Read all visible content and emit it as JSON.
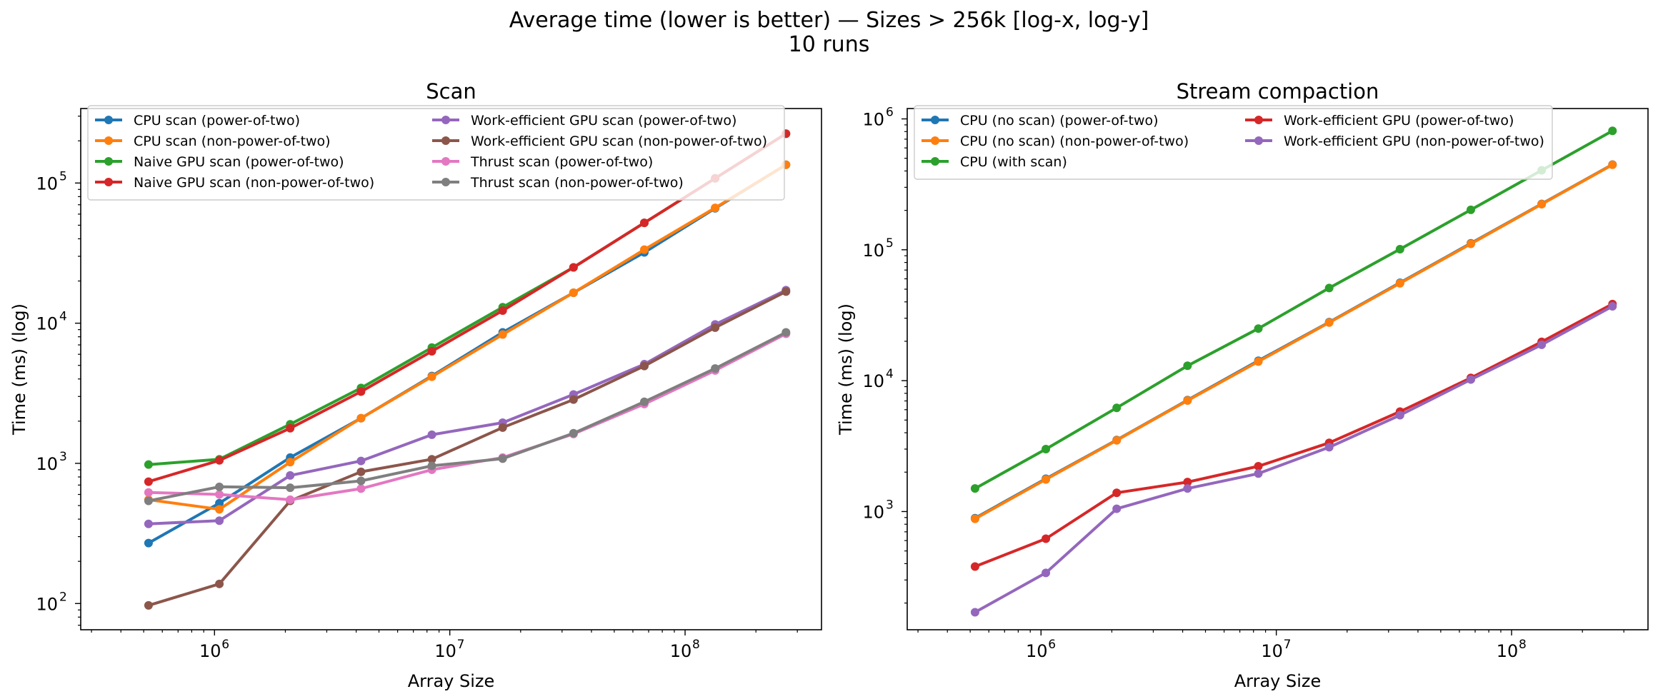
{
  "figure": {
    "title_line1": "Average time (lower is better) — Sizes > 256k [log-x, log-y]",
    "title_line2": "10 runs"
  },
  "chart_data": [
    {
      "type": "line",
      "title": "Scan",
      "xlabel": "Array Size",
      "ylabel": "Time (ms) (log)",
      "xscale": "log",
      "yscale": "log",
      "xlim": [
        270000,
        380000000
      ],
      "ylim": [
        65,
        340000
      ],
      "legend_position": "upper-left",
      "legend_columns": 2,
      "grid": false,
      "x": [
        524288,
        1048576,
        2097152,
        4194304,
        8388608,
        16777216,
        33554432,
        67108864,
        134217728,
        268435456
      ],
      "xticks": [
        1000000,
        10000000,
        100000000
      ],
      "xtick_labels": [
        {
          "base": "10",
          "exp": "6"
        },
        {
          "base": "10",
          "exp": "7"
        },
        {
          "base": "10",
          "exp": "8"
        }
      ],
      "yticks": [
        100,
        1000,
        10000,
        100000
      ],
      "ytick_labels": [
        {
          "base": "10",
          "exp": "2"
        },
        {
          "base": "10",
          "exp": "3"
        },
        {
          "base": "10",
          "exp": "4"
        },
        {
          "base": "10",
          "exp": "5"
        }
      ],
      "series": [
        {
          "name": "CPU scan (power-of-two)",
          "color": "#1f77b4",
          "values": [
            270,
            520,
            1100,
            2100,
            4200,
            8600,
            16500,
            32000,
            66000,
            135000
          ]
        },
        {
          "name": "CPU scan (non-power-of-two)",
          "color": "#ff7f0e",
          "values": [
            550,
            470,
            1020,
            2100,
            4150,
            8300,
            16500,
            33500,
            66500,
            135000
          ]
        },
        {
          "name": "Naive GPU scan (power-of-two)",
          "color": "#2ca02c",
          "values": [
            980,
            1070,
            1900,
            3450,
            6700,
            13000,
            25000,
            52000,
            108000,
            225000
          ]
        },
        {
          "name": "Naive GPU scan (non-power-of-two)",
          "color": "#d62728",
          "values": [
            740,
            1050,
            1780,
            3250,
            6300,
            12300,
            25000,
            52000,
            108000,
            225000
          ]
        },
        {
          "name": "Work-efficient GPU scan (power-of-two)",
          "color": "#9467bd",
          "values": [
            370,
            390,
            820,
            1040,
            1600,
            1950,
            3100,
            5100,
            9800,
            17200
          ]
        },
        {
          "name": "Work-efficient GPU scan (non-power-of-two)",
          "color": "#8c564b",
          "values": [
            97,
            138,
            540,
            870,
            1070,
            1800,
            2850,
            4950,
            9300,
            16800
          ]
        },
        {
          "name": "Thrust scan (power-of-two)",
          "color": "#e377c2",
          "values": [
            620,
            600,
            550,
            660,
            900,
            1100,
            1620,
            2650,
            4600,
            8400
          ]
        },
        {
          "name": "Thrust scan (non-power-of-two)",
          "color": "#7f7f7f",
          "values": [
            540,
            680,
            670,
            750,
            960,
            1080,
            1640,
            2750,
            4750,
            8600
          ]
        }
      ]
    },
    {
      "type": "line",
      "title": "Stream compaction",
      "xlabel": "Array Size",
      "ylabel": "Time (ms) (log)",
      "xscale": "log",
      "yscale": "log",
      "xlim": [
        270000,
        380000000
      ],
      "ylim": [
        125,
        1200000
      ],
      "legend_position": "upper-left",
      "legend_columns": 2,
      "grid": false,
      "x": [
        524288,
        1048576,
        2097152,
        4194304,
        8388608,
        16777216,
        33554432,
        67108864,
        134217728,
        268435456
      ],
      "xticks": [
        1000000,
        10000000,
        100000000
      ],
      "xtick_labels": [
        {
          "base": "10",
          "exp": "6"
        },
        {
          "base": "10",
          "exp": "7"
        },
        {
          "base": "10",
          "exp": "8"
        }
      ],
      "yticks": [
        1000,
        10000,
        100000,
        1000000
      ],
      "ytick_labels": [
        {
          "base": "10",
          "exp": "3"
        },
        {
          "base": "10",
          "exp": "4"
        },
        {
          "base": "10",
          "exp": "5"
        },
        {
          "base": "10",
          "exp": "6"
        }
      ],
      "series": [
        {
          "name": "CPU (no scan) (power-of-two)",
          "color": "#1f77b4",
          "values": [
            890,
            1780,
            3520,
            7100,
            14200,
            28000,
            56000,
            112000,
            224000,
            448000
          ]
        },
        {
          "name": "CPU (no scan) (non-power-of-two)",
          "color": "#ff7f0e",
          "values": [
            880,
            1760,
            3500,
            7050,
            14000,
            27800,
            55500,
            111000,
            223000,
            446000
          ]
        },
        {
          "name": "CPU (with scan)",
          "color": "#2ca02c",
          "values": [
            1500,
            3000,
            6200,
            13000,
            25000,
            51000,
            101000,
            202000,
            405000,
            810000
          ]
        },
        {
          "name": "Work-efficient GPU (power-of-two)",
          "color": "#d62728",
          "values": [
            380,
            620,
            1390,
            1680,
            2220,
            3350,
            5800,
            10500,
            19800,
            38500
          ]
        },
        {
          "name": "Work-efficient GPU (non-power-of-two)",
          "color": "#9467bd",
          "values": [
            170,
            340,
            1050,
            1500,
            1950,
            3100,
            5450,
            10200,
            18800,
            37000
          ]
        }
      ]
    }
  ]
}
